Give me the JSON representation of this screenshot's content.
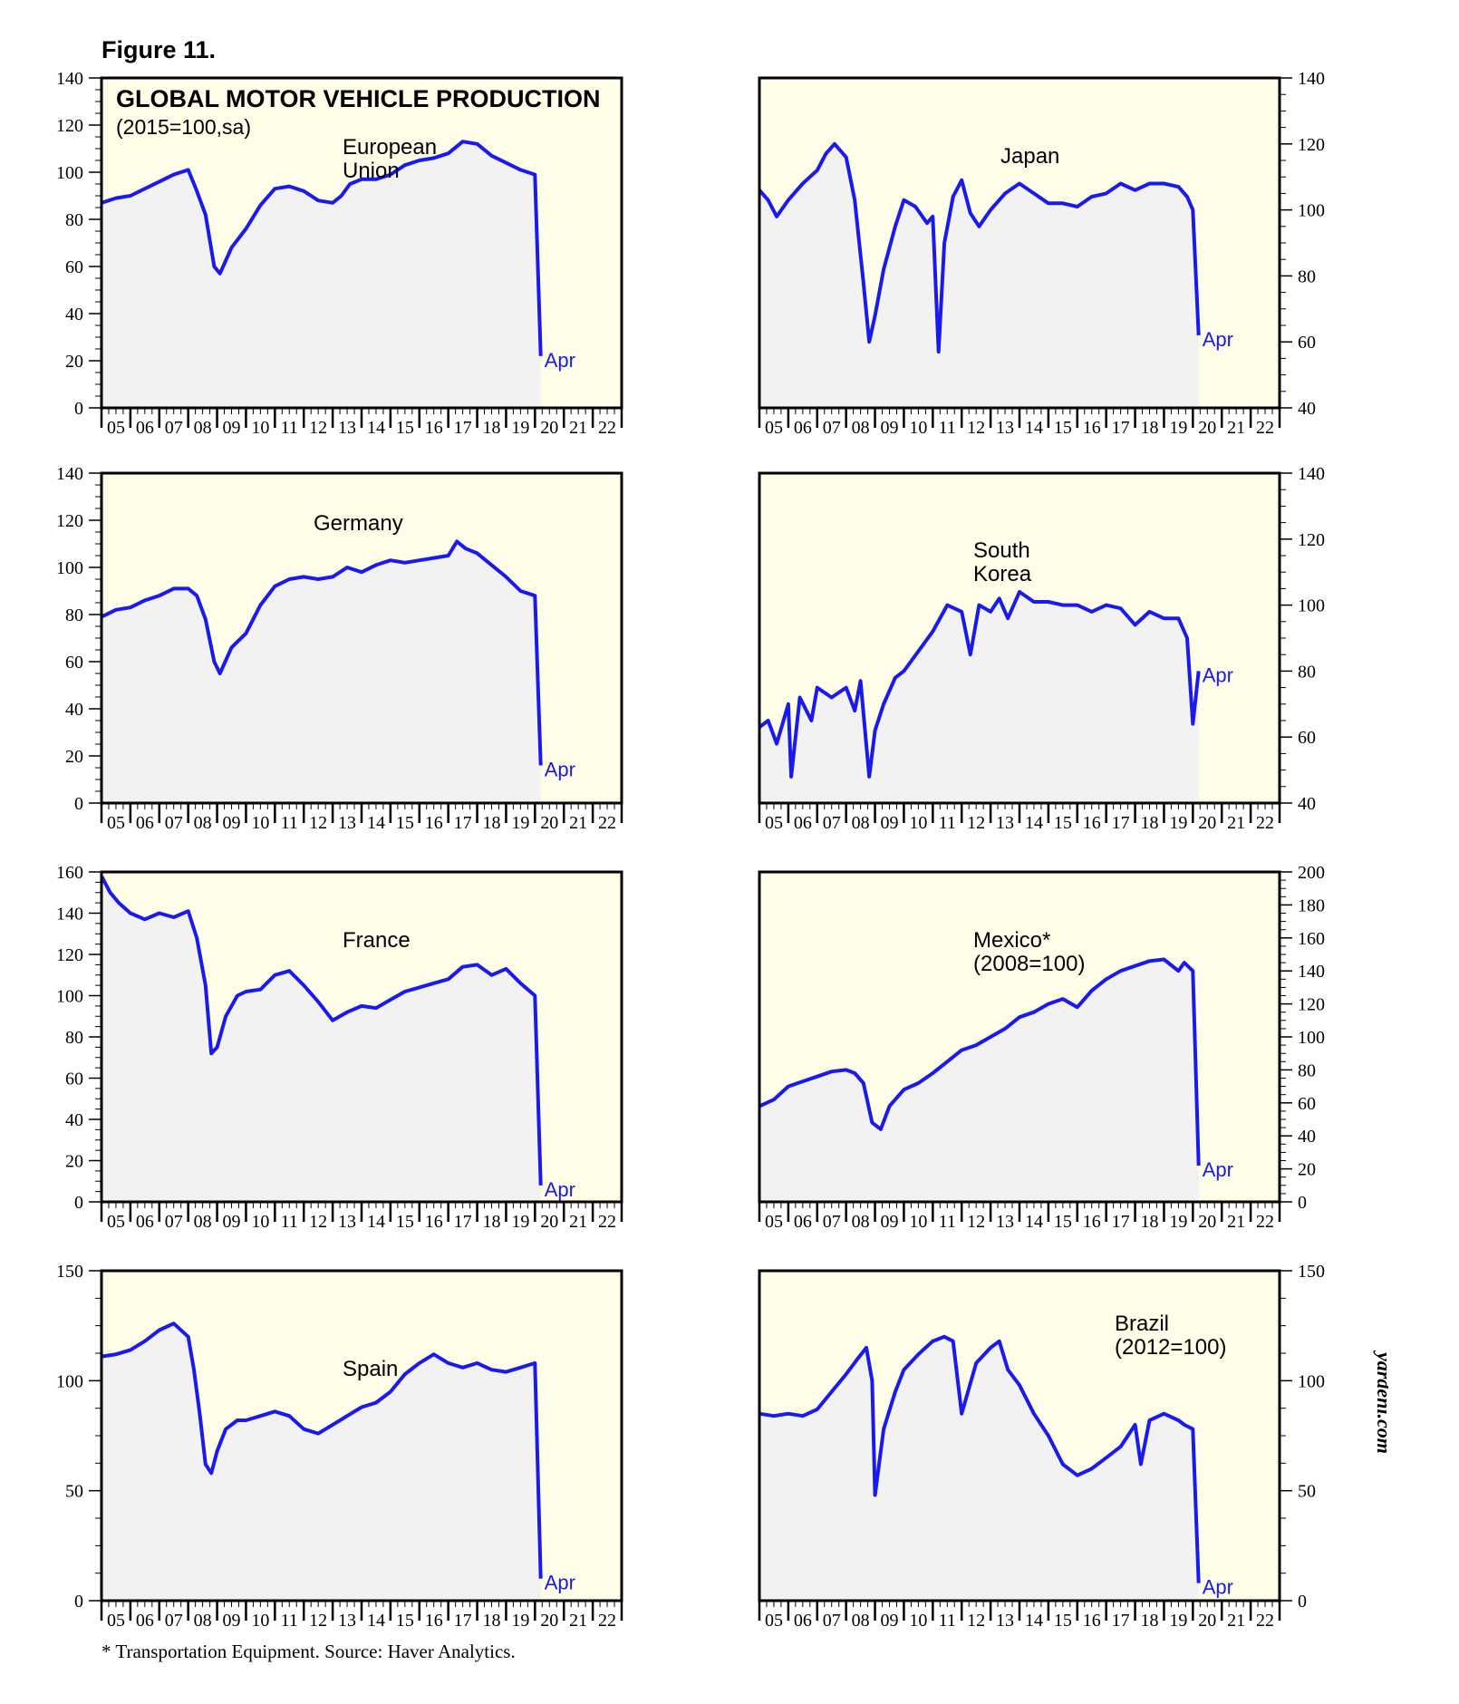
{
  "figure_label": "Figure 11.",
  "title": "GLOBAL MOTOR VEHICLE PRODUCTION",
  "subtitle": "(2015=100,sa)",
  "footnote": "* Transportation Equipment. Source: Haver Analytics.",
  "brand": "yardeni.com",
  "colors": {
    "line": "#1a1aee",
    "plot_bg": "#fdfde8",
    "fill": "#f2f2f2",
    "frame": "#000000"
  },
  "x_ticks": [
    "05",
    "06",
    "07",
    "08",
    "09",
    "10",
    "11",
    "12",
    "13",
    "14",
    "15",
    "16",
    "17",
    "18",
    "19",
    "20",
    "21",
    "22"
  ],
  "chart_data": [
    {
      "type": "line",
      "title": "European\nUnion",
      "last_label": "Apr",
      "y_axis_side": "left",
      "xlim": [
        2005,
        2023
      ],
      "ylim": [
        0,
        140
      ],
      "y_ticks": [
        0,
        20,
        40,
        60,
        80,
        100,
        120,
        140
      ],
      "x": [
        2005.0,
        2005.5,
        2006.0,
        2006.5,
        2007.0,
        2007.5,
        2008.0,
        2008.3,
        2008.6,
        2008.9,
        2009.1,
        2009.5,
        2010.0,
        2010.5,
        2011.0,
        2011.5,
        2012.0,
        2012.5,
        2013.0,
        2013.3,
        2013.6,
        2014.0,
        2014.5,
        2015.0,
        2015.5,
        2016.0,
        2016.5,
        2017.0,
        2017.5,
        2018.0,
        2018.5,
        2019.0,
        2019.5,
        2020.0,
        2020.2
      ],
      "y": [
        87,
        89,
        90,
        93,
        96,
        99,
        101,
        92,
        82,
        60,
        57,
        68,
        76,
        86,
        93,
        94,
        92,
        88,
        87,
        90,
        95,
        97,
        97,
        99,
        103,
        105,
        106,
        108,
        113,
        112,
        107,
        104,
        101,
        99,
        22
      ]
    },
    {
      "type": "line",
      "title": "Japan",
      "last_label": "Apr",
      "y_axis_side": "right",
      "xlim": [
        2005,
        2023
      ],
      "ylim": [
        40,
        140
      ],
      "y_ticks": [
        40,
        60,
        80,
        100,
        120,
        140
      ],
      "x": [
        2005.0,
        2005.3,
        2005.6,
        2006.0,
        2006.5,
        2007.0,
        2007.3,
        2007.6,
        2008.0,
        2008.3,
        2008.6,
        2008.8,
        2009.0,
        2009.3,
        2009.7,
        2010.0,
        2010.4,
        2010.8,
        2011.0,
        2011.2,
        2011.4,
        2011.7,
        2012.0,
        2012.3,
        2012.6,
        2013.0,
        2013.5,
        2014.0,
        2014.5,
        2015.0,
        2015.5,
        2016.0,
        2016.5,
        2017.0,
        2017.5,
        2018.0,
        2018.5,
        2019.0,
        2019.5,
        2019.8,
        2020.0,
        2020.2
      ],
      "y": [
        106,
        103,
        98,
        103,
        108,
        112,
        117,
        120,
        116,
        103,
        78,
        60,
        68,
        82,
        95,
        103,
        101,
        96,
        98,
        57,
        90,
        104,
        109,
        99,
        95,
        100,
        105,
        108,
        105,
        102,
        102,
        101,
        104,
        105,
        108,
        106,
        108,
        108,
        107,
        104,
        100,
        62
      ]
    },
    {
      "type": "line",
      "title": "Germany",
      "last_label": "Apr",
      "y_axis_side": "left",
      "xlim": [
        2005,
        2023
      ],
      "ylim": [
        0,
        140
      ],
      "y_ticks": [
        0,
        20,
        40,
        60,
        80,
        100,
        120,
        140
      ],
      "x": [
        2005.0,
        2005.5,
        2006.0,
        2006.5,
        2007.0,
        2007.5,
        2008.0,
        2008.3,
        2008.6,
        2008.9,
        2009.1,
        2009.5,
        2010.0,
        2010.5,
        2011.0,
        2011.5,
        2012.0,
        2012.5,
        2013.0,
        2013.5,
        2014.0,
        2014.5,
        2015.0,
        2015.5,
        2016.0,
        2016.5,
        2017.0,
        2017.3,
        2017.6,
        2018.0,
        2018.5,
        2019.0,
        2019.5,
        2020.0,
        2020.2
      ],
      "y": [
        79,
        82,
        83,
        86,
        88,
        91,
        91,
        88,
        78,
        60,
        55,
        66,
        72,
        84,
        92,
        95,
        96,
        95,
        96,
        100,
        98,
        101,
        103,
        102,
        103,
        104,
        105,
        111,
        108,
        106,
        101,
        96,
        90,
        88,
        16
      ]
    },
    {
      "type": "line",
      "title": "South\nKorea",
      "last_label": "Apr",
      "y_axis_side": "right",
      "xlim": [
        2005,
        2023
      ],
      "ylim": [
        40,
        140
      ],
      "y_ticks": [
        40,
        60,
        80,
        100,
        120,
        140
      ],
      "x": [
        2005.0,
        2005.3,
        2005.6,
        2006.0,
        2006.1,
        2006.4,
        2006.8,
        2007.0,
        2007.5,
        2008.0,
        2008.3,
        2008.5,
        2008.8,
        2009.0,
        2009.3,
        2009.7,
        2010.0,
        2010.5,
        2011.0,
        2011.5,
        2012.0,
        2012.3,
        2012.6,
        2013.0,
        2013.3,
        2013.6,
        2014.0,
        2014.5,
        2015.0,
        2015.5,
        2016.0,
        2016.5,
        2017.0,
        2017.5,
        2018.0,
        2018.5,
        2019.0,
        2019.5,
        2019.8,
        2020.0,
        2020.2
      ],
      "y": [
        63,
        65,
        58,
        70,
        48,
        72,
        65,
        75,
        72,
        75,
        68,
        77,
        48,
        62,
        70,
        78,
        80,
        86,
        92,
        100,
        98,
        85,
        100,
        98,
        102,
        96,
        104,
        101,
        101,
        100,
        100,
        98,
        100,
        99,
        94,
        98,
        96,
        96,
        90,
        64,
        80
      ]
    },
    {
      "type": "line",
      "title": "France",
      "last_label": "Apr",
      "y_axis_side": "left",
      "xlim": [
        2005,
        2023
      ],
      "ylim": [
        0,
        160
      ],
      "y_ticks": [
        0,
        20,
        40,
        60,
        80,
        100,
        120,
        140,
        160
      ],
      "x": [
        2005.0,
        2005.3,
        2005.6,
        2006.0,
        2006.5,
        2007.0,
        2007.5,
        2008.0,
        2008.3,
        2008.6,
        2008.8,
        2009.0,
        2009.3,
        2009.7,
        2010.0,
        2010.5,
        2011.0,
        2011.5,
        2012.0,
        2012.5,
        2013.0,
        2013.5,
        2014.0,
        2014.5,
        2015.0,
        2015.5,
        2016.0,
        2016.5,
        2017.0,
        2017.5,
        2018.0,
        2018.5,
        2019.0,
        2019.5,
        2020.0,
        2020.2
      ],
      "y": [
        158,
        150,
        145,
        140,
        137,
        140,
        138,
        141,
        128,
        105,
        72,
        75,
        90,
        100,
        102,
        103,
        110,
        112,
        105,
        97,
        88,
        92,
        95,
        94,
        98,
        102,
        104,
        106,
        108,
        114,
        115,
        110,
        113,
        106,
        100,
        8
      ]
    },
    {
      "type": "line",
      "title": "Mexico*\n(2008=100)",
      "last_label": "Apr",
      "y_axis_side": "right",
      "xlim": [
        2005,
        2023
      ],
      "ylim": [
        0,
        200
      ],
      "y_ticks": [
        0,
        20,
        40,
        60,
        80,
        100,
        120,
        140,
        160,
        180,
        200
      ],
      "x": [
        2005.0,
        2005.5,
        2006.0,
        2006.5,
        2007.0,
        2007.5,
        2008.0,
        2008.3,
        2008.6,
        2008.9,
        2009.2,
        2009.5,
        2010.0,
        2010.5,
        2011.0,
        2011.5,
        2012.0,
        2012.5,
        2013.0,
        2013.5,
        2014.0,
        2014.5,
        2015.0,
        2015.5,
        2016.0,
        2016.5,
        2017.0,
        2017.5,
        2018.0,
        2018.5,
        2019.0,
        2019.5,
        2019.7,
        2020.0,
        2020.2
      ],
      "y": [
        58,
        62,
        70,
        73,
        76,
        79,
        80,
        78,
        72,
        48,
        44,
        58,
        68,
        72,
        78,
        85,
        92,
        95,
        100,
        105,
        112,
        115,
        120,
        123,
        118,
        128,
        135,
        140,
        143,
        146,
        147,
        140,
        145,
        140,
        22
      ]
    },
    {
      "type": "line",
      "title": "Spain",
      "last_label": "Apr",
      "y_axis_side": "left",
      "xlim": [
        2005,
        2023
      ],
      "ylim": [
        0,
        150
      ],
      "y_ticks": [
        0,
        50,
        100,
        150
      ],
      "x": [
        2005.0,
        2005.5,
        2006.0,
        2006.5,
        2007.0,
        2007.5,
        2008.0,
        2008.2,
        2008.4,
        2008.6,
        2008.8,
        2009.0,
        2009.3,
        2009.7,
        2010.0,
        2010.5,
        2011.0,
        2011.5,
        2012.0,
        2012.5,
        2013.0,
        2013.5,
        2014.0,
        2014.5,
        2015.0,
        2015.5,
        2016.0,
        2016.5,
        2017.0,
        2017.5,
        2018.0,
        2018.5,
        2019.0,
        2019.5,
        2020.0,
        2020.2
      ],
      "y": [
        111,
        112,
        114,
        118,
        123,
        126,
        120,
        105,
        85,
        62,
        58,
        68,
        78,
        82,
        82,
        84,
        86,
        84,
        78,
        76,
        80,
        84,
        88,
        90,
        95,
        103,
        108,
        112,
        108,
        106,
        108,
        105,
        104,
        106,
        108,
        10
      ]
    },
    {
      "type": "line",
      "title": "Brazil\n(2012=100)",
      "last_label": "Apr",
      "y_axis_side": "right",
      "xlim": [
        2005,
        2023
      ],
      "ylim": [
        0,
        150
      ],
      "y_ticks": [
        0,
        50,
        100,
        150
      ],
      "x": [
        2005.0,
        2005.5,
        2006.0,
        2006.5,
        2007.0,
        2007.5,
        2008.0,
        2008.4,
        2008.7,
        2008.9,
        2009.0,
        2009.3,
        2009.7,
        2010.0,
        2010.5,
        2011.0,
        2011.4,
        2011.7,
        2012.0,
        2012.5,
        2013.0,
        2013.3,
        2013.6,
        2014.0,
        2014.5,
        2015.0,
        2015.5,
        2016.0,
        2016.5,
        2017.0,
        2017.5,
        2018.0,
        2018.2,
        2018.5,
        2019.0,
        2019.5,
        2019.7,
        2020.0,
        2020.2
      ],
      "y": [
        85,
        84,
        85,
        84,
        87,
        95,
        103,
        110,
        115,
        100,
        48,
        78,
        95,
        105,
        112,
        118,
        120,
        118,
        85,
        108,
        115,
        118,
        105,
        98,
        85,
        75,
        62,
        57,
        60,
        65,
        70,
        80,
        62,
        82,
        85,
        82,
        80,
        78,
        8
      ]
    }
  ]
}
